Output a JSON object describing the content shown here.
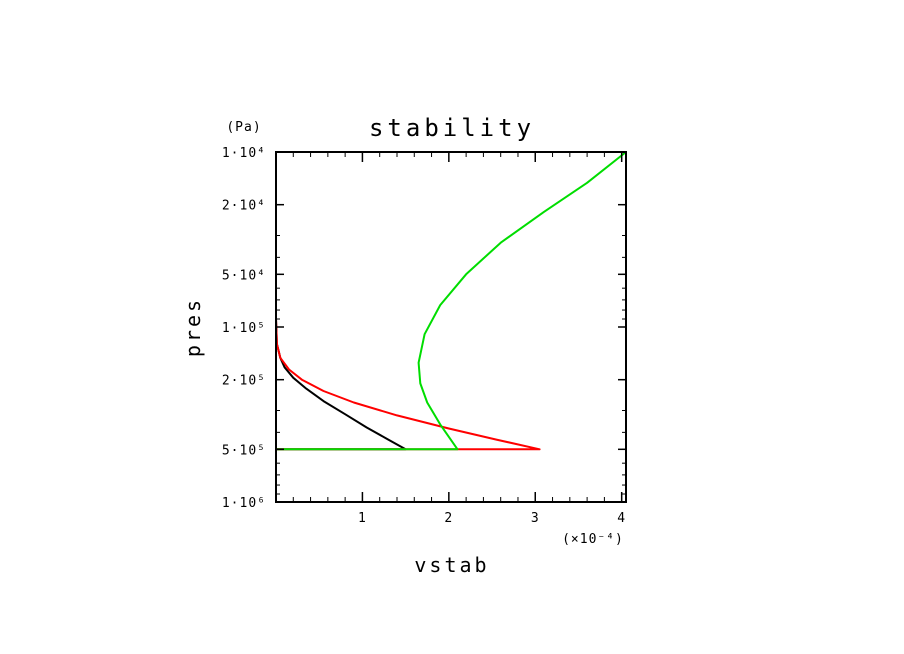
{
  "chart_data": {
    "type": "line",
    "title": "stability",
    "xlabel": "vstab",
    "ylabel": "pres",
    "x_unit": "(×10⁻⁴)",
    "y_unit": "(Pa)",
    "xlim": [
      0,
      4.05
    ],
    "ylim": [
      10000,
      1000000
    ],
    "y_scale": "log",
    "y_inverted": true,
    "x_ticks": [
      "1",
      "2",
      "3",
      "4"
    ],
    "y_ticks": [
      {
        "value": 10000,
        "label": "1·10⁴"
      },
      {
        "value": 20000,
        "label": "2·10⁴"
      },
      {
        "value": 50000,
        "label": "5·10⁴"
      },
      {
        "value": 100000,
        "label": "1·10⁵"
      },
      {
        "value": 200000,
        "label": "2·10⁵"
      },
      {
        "value": 500000,
        "label": "5·10⁵"
      },
      {
        "value": 1000000,
        "label": "1·10⁶"
      }
    ],
    "grid": false,
    "series": [
      {
        "color": "#000000",
        "x": [
          0,
          0,
          0.01,
          0.05,
          0.1,
          0.2,
          0.35,
          0.55,
          0.8,
          1.05,
          1.3,
          1.5,
          1.5,
          0,
          0
        ],
        "y": [
          10000,
          90000,
          125000,
          150000,
          170000,
          195000,
          225000,
          265000,
          315000,
          375000,
          440000,
          500000,
          500000,
          500000,
          1000000
        ]
      },
      {
        "color": "#ff0000",
        "x": [
          0,
          0,
          0.01,
          0.05,
          0.15,
          0.3,
          0.55,
          0.9,
          1.4,
          2.0,
          2.55,
          3.05,
          0,
          0
        ],
        "y": [
          10000,
          90000,
          125000,
          150000,
          175000,
          200000,
          232000,
          270000,
          320000,
          380000,
          440000,
          500000,
          500000,
          1000000
        ]
      },
      {
        "color": "#00dd00",
        "x": [
          4.05,
          3.6,
          3.1,
          2.6,
          2.2,
          1.9,
          1.72,
          1.65,
          1.67,
          1.75,
          1.9,
          2.1,
          0,
          0
        ],
        "y": [
          10000,
          15000,
          22000,
          33000,
          50000,
          75000,
          110000,
          160000,
          210000,
          270000,
          360000,
          500000,
          500000,
          1000000
        ]
      }
    ]
  }
}
